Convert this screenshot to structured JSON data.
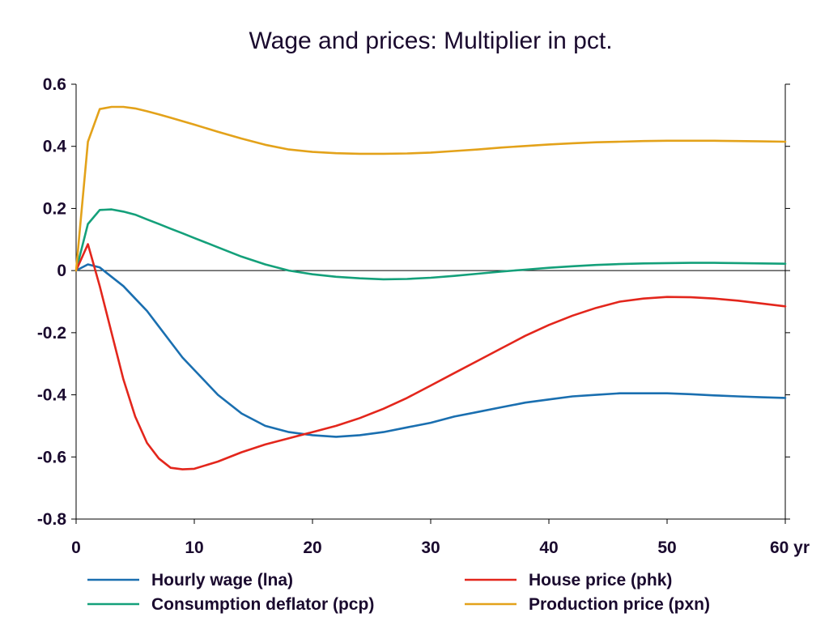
{
  "chart_data": {
    "type": "line",
    "title": "Wage and prices: Multiplier in pct.",
    "xlabel": "",
    "ylabel": "",
    "x_unit_label": "yr",
    "xlim": [
      0,
      60
    ],
    "ylim": [
      -0.8,
      0.6
    ],
    "xticks": [
      0,
      10,
      20,
      30,
      40,
      50,
      60
    ],
    "xtick_labels": [
      "0",
      "10",
      "20",
      "30",
      "40",
      "50",
      "60 yr"
    ],
    "yticks": [
      -0.8,
      -0.6,
      -0.4,
      -0.2,
      0,
      0.2,
      0.4,
      0.6
    ],
    "ytick_labels": [
      "-0.8",
      "-0.6",
      "-0.4",
      "-0.2",
      "0",
      "0.2",
      "0.4",
      "0.6"
    ],
    "grid": false,
    "zero_line": true,
    "legend_position": "bottom",
    "series": [
      {
        "name": "Hourly wage (lna)",
        "color": "#1a6fb0",
        "points": [
          [
            0,
            0
          ],
          [
            1,
            0.02
          ],
          [
            2,
            0.01
          ],
          [
            3,
            -0.02
          ],
          [
            4,
            -0.05
          ],
          [
            5,
            -0.09
          ],
          [
            6,
            -0.13
          ],
          [
            7,
            -0.18
          ],
          [
            8,
            -0.23
          ],
          [
            9,
            -0.28
          ],
          [
            10,
            -0.32
          ],
          [
            12,
            -0.4
          ],
          [
            14,
            -0.46
          ],
          [
            16,
            -0.5
          ],
          [
            18,
            -0.52
          ],
          [
            20,
            -0.53
          ],
          [
            22,
            -0.535
          ],
          [
            24,
            -0.53
          ],
          [
            26,
            -0.52
          ],
          [
            28,
            -0.505
          ],
          [
            30,
            -0.49
          ],
          [
            32,
            -0.47
          ],
          [
            34,
            -0.455
          ],
          [
            36,
            -0.44
          ],
          [
            38,
            -0.425
          ],
          [
            40,
            -0.415
          ],
          [
            42,
            -0.405
          ],
          [
            44,
            -0.4
          ],
          [
            46,
            -0.395
          ],
          [
            48,
            -0.395
          ],
          [
            50,
            -0.395
          ],
          [
            52,
            -0.398
          ],
          [
            54,
            -0.402
          ],
          [
            56,
            -0.405
          ],
          [
            58,
            -0.408
          ],
          [
            60,
            -0.41
          ]
        ]
      },
      {
        "name": "Consumption deflator (pcp)",
        "color": "#14a07a",
        "points": [
          [
            0,
            0
          ],
          [
            1,
            0.15
          ],
          [
            2,
            0.195
          ],
          [
            3,
            0.197
          ],
          [
            4,
            0.19
          ],
          [
            5,
            0.18
          ],
          [
            6,
            0.165
          ],
          [
            7,
            0.15
          ],
          [
            8,
            0.135
          ],
          [
            9,
            0.12
          ],
          [
            10,
            0.105
          ],
          [
            12,
            0.075
          ],
          [
            14,
            0.045
          ],
          [
            16,
            0.02
          ],
          [
            18,
            0.0
          ],
          [
            20,
            -0.012
          ],
          [
            22,
            -0.02
          ],
          [
            24,
            -0.025
          ],
          [
            26,
            -0.028
          ],
          [
            28,
            -0.027
          ],
          [
            30,
            -0.023
          ],
          [
            32,
            -0.017
          ],
          [
            34,
            -0.01
          ],
          [
            36,
            -0.003
          ],
          [
            38,
            0.003
          ],
          [
            40,
            0.009
          ],
          [
            42,
            0.014
          ],
          [
            44,
            0.018
          ],
          [
            46,
            0.021
          ],
          [
            48,
            0.023
          ],
          [
            50,
            0.024
          ],
          [
            52,
            0.025
          ],
          [
            54,
            0.025
          ],
          [
            56,
            0.024
          ],
          [
            58,
            0.023
          ],
          [
            60,
            0.022
          ]
        ]
      },
      {
        "name": "House price (phk)",
        "color": "#e3261c",
        "points": [
          [
            0,
            0
          ],
          [
            1,
            0.085
          ],
          [
            2,
            -0.05
          ],
          [
            3,
            -0.2
          ],
          [
            4,
            -0.35
          ],
          [
            5,
            -0.47
          ],
          [
            6,
            -0.555
          ],
          [
            7,
            -0.605
          ],
          [
            8,
            -0.635
          ],
          [
            9,
            -0.64
          ],
          [
            10,
            -0.638
          ],
          [
            12,
            -0.615
          ],
          [
            14,
            -0.585
          ],
          [
            16,
            -0.56
          ],
          [
            18,
            -0.54
          ],
          [
            20,
            -0.52
          ],
          [
            22,
            -0.5
          ],
          [
            24,
            -0.475
          ],
          [
            26,
            -0.445
          ],
          [
            28,
            -0.41
          ],
          [
            30,
            -0.37
          ],
          [
            32,
            -0.33
          ],
          [
            34,
            -0.29
          ],
          [
            36,
            -0.25
          ],
          [
            38,
            -0.21
          ],
          [
            40,
            -0.175
          ],
          [
            42,
            -0.145
          ],
          [
            44,
            -0.12
          ],
          [
            46,
            -0.1
          ],
          [
            48,
            -0.09
          ],
          [
            50,
            -0.085
          ],
          [
            52,
            -0.086
          ],
          [
            54,
            -0.09
          ],
          [
            56,
            -0.097
          ],
          [
            58,
            -0.106
          ],
          [
            60,
            -0.115
          ]
        ]
      },
      {
        "name": "Production price (pxn)",
        "color": "#e3a21a",
        "points": [
          [
            0,
            0
          ],
          [
            1,
            0.415
          ],
          [
            2,
            0.52
          ],
          [
            3,
            0.527
          ],
          [
            4,
            0.527
          ],
          [
            5,
            0.522
          ],
          [
            6,
            0.513
          ],
          [
            7,
            0.503
          ],
          [
            8,
            0.492
          ],
          [
            9,
            0.481
          ],
          [
            10,
            0.47
          ],
          [
            12,
            0.447
          ],
          [
            14,
            0.425
          ],
          [
            16,
            0.405
          ],
          [
            18,
            0.39
          ],
          [
            20,
            0.382
          ],
          [
            22,
            0.378
          ],
          [
            24,
            0.376
          ],
          [
            26,
            0.376
          ],
          [
            28,
            0.377
          ],
          [
            30,
            0.38
          ],
          [
            32,
            0.385
          ],
          [
            34,
            0.39
          ],
          [
            36,
            0.396
          ],
          [
            38,
            0.401
          ],
          [
            40,
            0.406
          ],
          [
            42,
            0.41
          ],
          [
            44,
            0.413
          ],
          [
            46,
            0.415
          ],
          [
            48,
            0.417
          ],
          [
            50,
            0.418
          ],
          [
            52,
            0.418
          ],
          [
            54,
            0.418
          ],
          [
            56,
            0.417
          ],
          [
            58,
            0.416
          ],
          [
            60,
            0.415
          ]
        ]
      }
    ]
  }
}
